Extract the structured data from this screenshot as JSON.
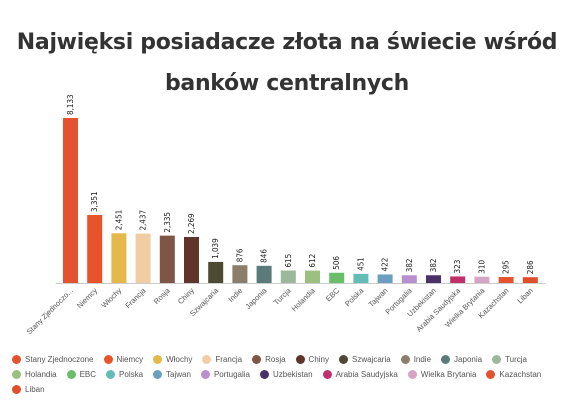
{
  "title_line1": "Najwięksi posiadacze złota na świecie wśród",
  "title_line2": "banków centralnych",
  "chart_data": {
    "type": "bar",
    "title": "Najwięksi posiadacze złota na świecie wśród banków centralnych",
    "xlabel": "",
    "ylabel": "",
    "ylim": [
      0,
      8500
    ],
    "grid": false,
    "legend": "bottom",
    "categories": [
      "Stany Zjednoczone",
      "Niemcy",
      "Włochy",
      "Francja",
      "Rosja",
      "Chiny",
      "Szwajcaria",
      "Indie",
      "Japonia",
      "Turcja",
      "Holandia",
      "EBC",
      "Polska",
      "Tajwan",
      "Portugalia",
      "Uzbekistan",
      "Arabia Saudyjska",
      "Wielka Brytania",
      "Kazachstan",
      "Liban"
    ],
    "tick_labels": [
      "Stany Zjednoczo...",
      "Niemcy",
      "Włochy",
      "Francja",
      "Rosja",
      "Chiny",
      "Szwajcaria",
      "Indie",
      "Japonia",
      "Turcja",
      "Holandia",
      "EBC",
      "Polska",
      "Tajwan",
      "Portugalia",
      "Uzbekistan",
      "Arabia Saudyjska",
      "Wielka Brytania",
      "Kazachstan",
      "Liban"
    ],
    "values": [
      8133,
      3351,
      2451,
      2437,
      2335,
      2269,
      1039,
      876,
      846,
      615,
      612,
      506,
      451,
      422,
      382,
      382,
      323,
      310,
      295,
      286
    ],
    "value_labels": [
      "8,133",
      "3,351",
      "2,451",
      "2,437",
      "2,335",
      "2,269",
      "1,039",
      "876",
      "846",
      "615",
      "612",
      "506",
      "451",
      "422",
      "382",
      "382",
      "323",
      "310",
      "295",
      "286"
    ],
    "colors": [
      "#e4532f",
      "#e9532a",
      "#e5b84b",
      "#f0cda3",
      "#7f5646",
      "#5e3528",
      "#4c4a33",
      "#8b7e6b",
      "#5b7b7b",
      "#9ab89a",
      "#9cc07e",
      "#6abe6a",
      "#63bcb5",
      "#6a9fbf",
      "#b98fcf",
      "#4b3069",
      "#c0306a",
      "#d6a5c6",
      "#e4532f",
      "#e04e2c"
    ]
  }
}
